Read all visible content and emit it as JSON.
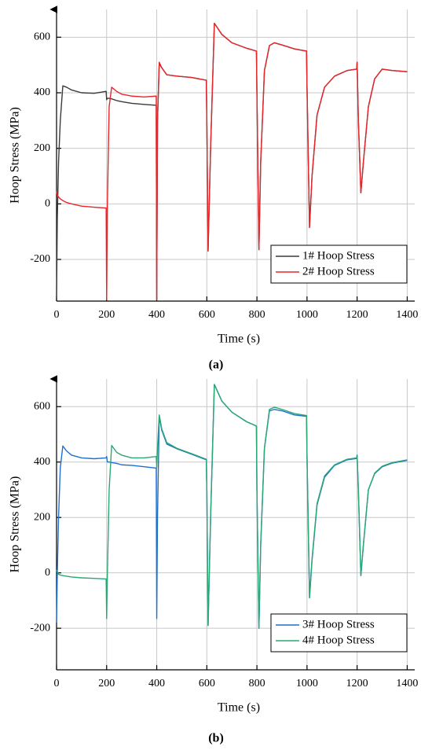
{
  "chart_data": [
    {
      "type": "line",
      "caption": "(a)",
      "xlabel": "Time (s)",
      "ylabel": "Hoop Stress (MPa)",
      "xlim": [
        0,
        1430
      ],
      "ylim": [
        -350,
        700
      ],
      "xticks": [
        0,
        200,
        400,
        600,
        800,
        1000,
        1200,
        1400
      ],
      "yticks": [
        -200,
        0,
        200,
        400,
        600
      ],
      "grid": true,
      "legend": "lower right",
      "x": [
        0,
        3,
        8,
        15,
        25,
        40,
        60,
        100,
        150,
        198,
        200,
        203,
        210,
        220,
        240,
        260,
        300,
        350,
        398,
        400,
        403,
        410,
        420,
        440,
        480,
        540,
        598,
        600,
        605,
        615,
        630,
        660,
        700,
        760,
        798,
        800,
        808,
        815,
        830,
        850,
        870,
        900,
        950,
        998,
        1000,
        1010,
        1020,
        1040,
        1070,
        1110,
        1160,
        1198,
        1200,
        1205,
        1215,
        1225,
        1245,
        1270,
        1300,
        1340,
        1400
      ],
      "series": [
        {
          "name": "1# Hoop Stress",
          "color": "#3a3a3a",
          "values": [
            -340,
            -50,
            150,
            300,
            425,
            420,
            410,
            400,
            398,
            405,
            375,
            380,
            380,
            378,
            372,
            368,
            362,
            358,
            355,
            -345,
            300,
            505,
            490,
            465,
            460,
            455,
            445,
            300,
            -170,
            200,
            650,
            610,
            580,
            560,
            550,
            400,
            -165,
            150,
            480,
            570,
            580,
            572,
            558,
            550,
            420,
            -85,
            100,
            320,
            420,
            460,
            480,
            485,
            510,
            300,
            40,
            150,
            350,
            450,
            485,
            480,
            476
          ]
        },
        {
          "name": "2# Hoop Stress",
          "color": "#e8262a",
          "values": [
            45,
            30,
            25,
            18,
            12,
            5,
            0,
            -8,
            -12,
            -15,
            -345,
            0,
            350,
            420,
            405,
            395,
            388,
            385,
            388,
            -345,
            300,
            510,
            490,
            465,
            460,
            455,
            445,
            300,
            -170,
            200,
            650,
            610,
            580,
            560,
            550,
            400,
            -165,
            150,
            480,
            570,
            580,
            572,
            558,
            550,
            420,
            -85,
            100,
            320,
            420,
            460,
            480,
            485,
            510,
            300,
            40,
            150,
            350,
            450,
            485,
            480,
            476
          ]
        }
      ]
    },
    {
      "type": "line",
      "caption": "(b)",
      "xlabel": "Time (s)",
      "ylabel": "Hoop Stress (MPa)",
      "xlim": [
        0,
        1430
      ],
      "ylim": [
        -350,
        700
      ],
      "xticks": [
        0,
        200,
        400,
        600,
        800,
        1000,
        1200,
        1400
      ],
      "yticks": [
        -200,
        0,
        200,
        400,
        600
      ],
      "grid": true,
      "legend": "lower right",
      "x": [
        0,
        3,
        8,
        15,
        25,
        40,
        60,
        100,
        150,
        198,
        200,
        203,
        210,
        220,
        240,
        260,
        300,
        350,
        398,
        400,
        403,
        410,
        420,
        440,
        480,
        540,
        598,
        600,
        605,
        615,
        630,
        660,
        700,
        760,
        798,
        800,
        808,
        815,
        830,
        850,
        870,
        900,
        950,
        998,
        1000,
        1010,
        1020,
        1040,
        1070,
        1110,
        1160,
        1198,
        1200,
        1205,
        1215,
        1225,
        1245,
        1270,
        1300,
        1340,
        1400
      ],
      "series": [
        {
          "name": "3# Hoop Stress",
          "color": "#1f6fd0",
          "values": [
            -180,
            0,
            200,
            380,
            458,
            440,
            425,
            415,
            412,
            415,
            420,
            400,
            400,
            398,
            395,
            390,
            388,
            383,
            378,
            -165,
            200,
            565,
            515,
            465,
            448,
            428,
            408,
            300,
            -190,
            200,
            680,
            620,
            580,
            545,
            530,
            300,
            -200,
            100,
            450,
            585,
            590,
            585,
            570,
            565,
            420,
            -90,
            45,
            245,
            345,
            388,
            408,
            413,
            425,
            300,
            -10,
            100,
            300,
            358,
            383,
            396,
            406
          ]
        },
        {
          "name": "4# Hoop Stress",
          "color": "#2aa874",
          "values": [
            10,
            5,
            -5,
            -8,
            -10,
            -12,
            -15,
            -18,
            -20,
            -22,
            -165,
            0,
            300,
            460,
            435,
            425,
            415,
            415,
            420,
            380,
            450,
            570,
            520,
            470,
            450,
            430,
            410,
            300,
            -190,
            200,
            680,
            620,
            580,
            545,
            530,
            300,
            -200,
            100,
            450,
            590,
            598,
            590,
            575,
            568,
            420,
            -90,
            50,
            250,
            350,
            390,
            410,
            415,
            420,
            300,
            -10,
            100,
            300,
            360,
            385,
            398,
            408
          ]
        }
      ]
    }
  ]
}
